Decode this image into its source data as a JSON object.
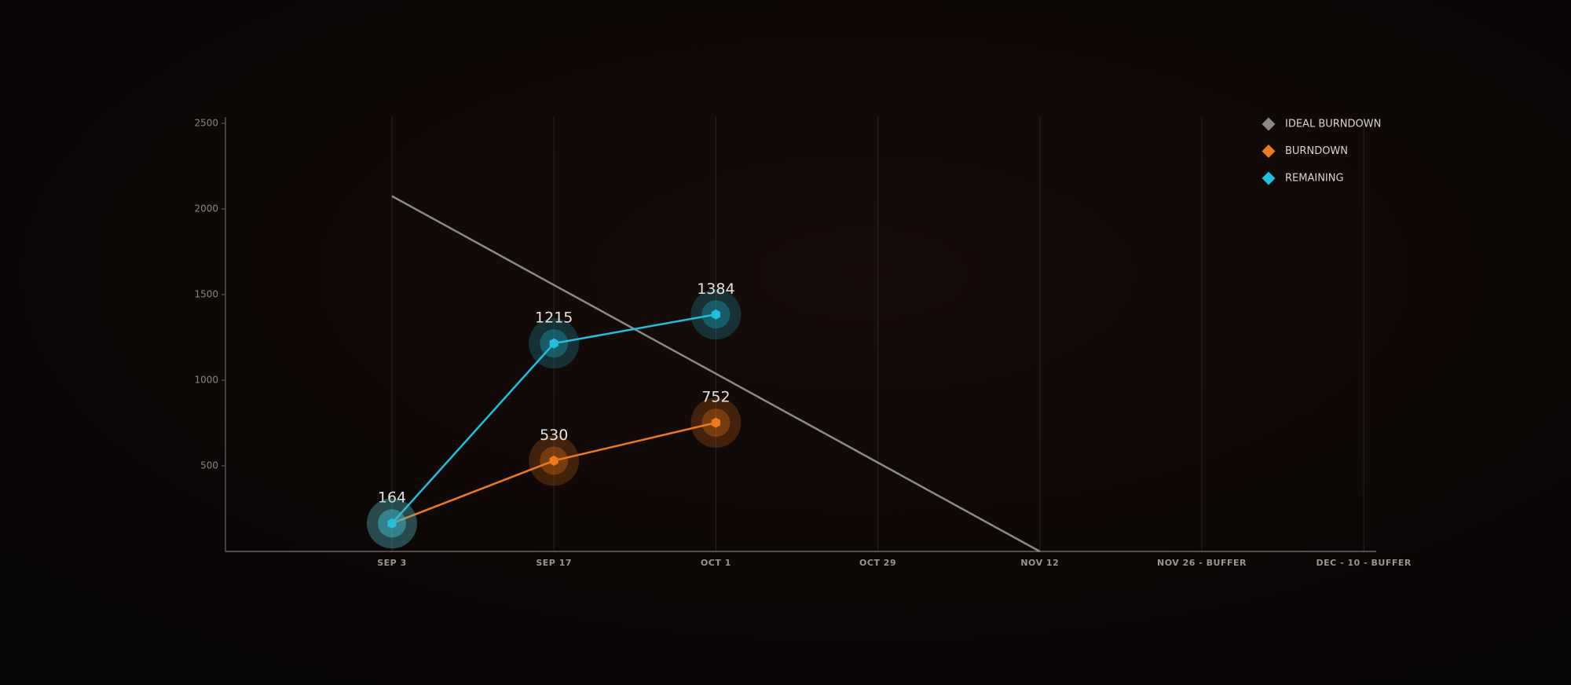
{
  "chart_data": {
    "type": "line",
    "categories": [
      "SEP 3",
      "SEP 17",
      "OCT 1",
      "OCT 29",
      "NOV 12",
      "NOV 26 - BUFFER",
      "DEC - 10 - BUFFER"
    ],
    "series": [
      {
        "name": "IDEAL BURNDOWN",
        "color": "#8a8a8a",
        "values": [
          2075,
          1556,
          1038,
          519,
          0,
          null,
          null
        ],
        "labels": false
      },
      {
        "name": "BURNDOWN",
        "color": "#f07a1a",
        "values": [
          164,
          530,
          752,
          null,
          null,
          null,
          null
        ],
        "labels": true
      },
      {
        "name": "REMAINING",
        "color": "#1fc0dc",
        "values": [
          164,
          1215,
          1384,
          null,
          null,
          null,
          null
        ],
        "labels": true
      }
    ],
    "ylim": [
      0,
      2500
    ],
    "yticks": [
      500,
      1000,
      1500,
      2000,
      2500
    ],
    "grid": true,
    "legend": "top-right"
  }
}
